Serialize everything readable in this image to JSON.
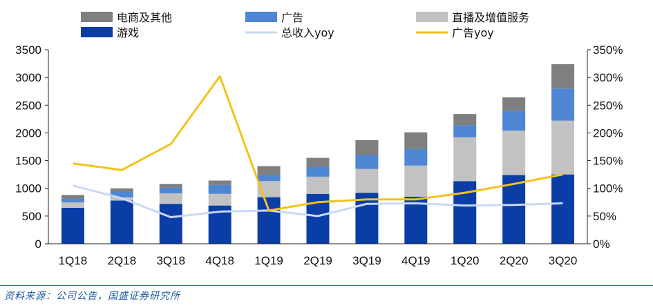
{
  "chart_data": {
    "type": "bar",
    "stacked": true,
    "categories": [
      "1Q18",
      "2Q18",
      "3Q18",
      "4Q18",
      "1Q19",
      "2Q19",
      "3Q19",
      "4Q19",
      "1Q20",
      "2Q20",
      "3Q20"
    ],
    "bar_series": [
      {
        "name": "游戏",
        "color": "#0a3ea6",
        "values": [
          650,
          780,
          720,
          690,
          840,
          900,
          920,
          850,
          1130,
          1240,
          1250
        ]
      },
      {
        "name": "直播及增值服务",
        "color": "#c2c2c2",
        "values": [
          95,
          60,
          190,
          210,
          290,
          310,
          430,
          560,
          790,
          800,
          970
        ]
      },
      {
        "name": "广告",
        "color": "#4f86d4",
        "values": [
          65,
          100,
          100,
          160,
          110,
          180,
          250,
          300,
          220,
          360,
          580
        ]
      },
      {
        "name": "电商及其他",
        "color": "#7f7f7f",
        "values": [
          70,
          60,
          70,
          80,
          160,
          160,
          270,
          300,
          200,
          240,
          440
        ]
      }
    ],
    "line_series": [
      {
        "name": "总收入yoy",
        "color": "#c9d9f2",
        "axis": "right",
        "values": [
          105,
          82,
          48,
          58,
          60,
          50,
          72,
          73,
          69,
          70,
          73
        ]
      },
      {
        "name": "广告yoy",
        "color": "#f4c21a",
        "axis": "right",
        "values": [
          145,
          133,
          180,
          302,
          60,
          75,
          80,
          80,
          92,
          108,
          125
        ]
      }
    ],
    "left_axis": {
      "ylim": [
        0,
        3500
      ],
      "ticks": [
        "0",
        "500",
        "1000",
        "1500",
        "2000",
        "2500",
        "3000",
        "3500"
      ]
    },
    "right_axis": {
      "ylim": [
        0,
        350
      ],
      "ticks": [
        "0%",
        "50%",
        "100%",
        "150%",
        "200%",
        "250%",
        "300%",
        "350%"
      ]
    }
  },
  "source": "资料来源：公司公告，国盛证券研究所"
}
